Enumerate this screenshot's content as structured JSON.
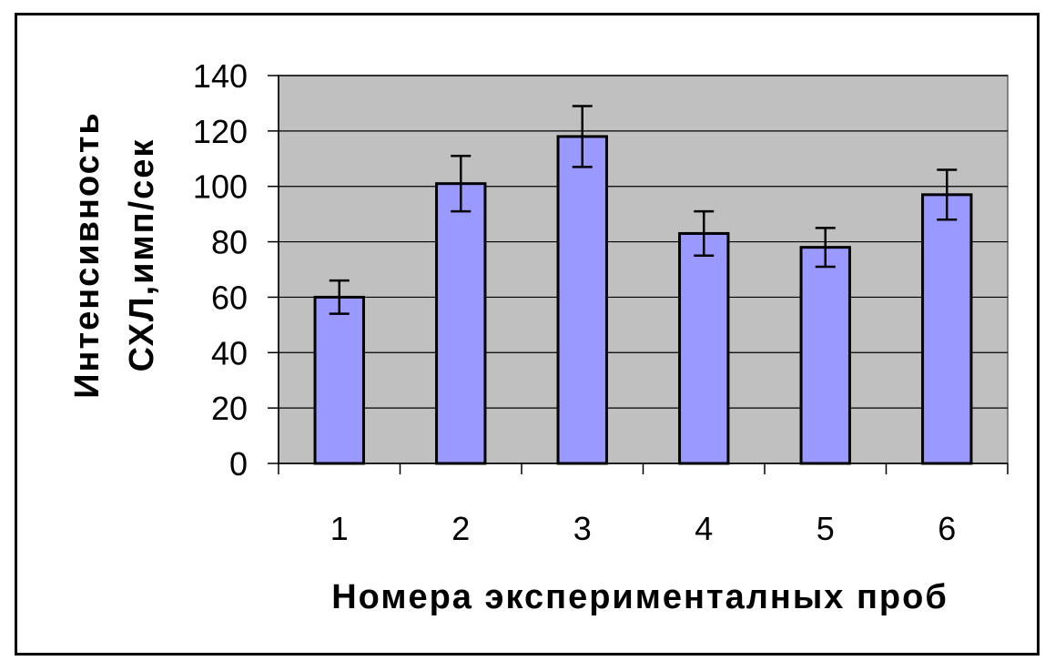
{
  "chart_data": {
    "type": "bar",
    "title": "",
    "categories": [
      "1",
      "2",
      "3",
      "4",
      "5",
      "6"
    ],
    "values": [
      60,
      101,
      118,
      83,
      78,
      97
    ],
    "error": [
      6,
      10,
      11,
      8,
      7,
      9
    ],
    "ylim": [
      0,
      140
    ],
    "yticks": [
      0,
      20,
      40,
      60,
      80,
      100,
      120,
      140
    ],
    "ytick_labels": [
      "0",
      "20",
      "40",
      "60",
      "80",
      "100",
      "120",
      "140"
    ],
    "xlabel": "Номера эксперименталных проб",
    "ylabel_line1": "Интенсивность",
    "ylabel_line2": "СХЛ,имп/сек",
    "grid": true,
    "legend": "none",
    "colors": {
      "bar_fill": "#9999ff",
      "bar_stroke": "#000000",
      "plot_background": "#c0c0c0",
      "grid": "#000000"
    }
  }
}
